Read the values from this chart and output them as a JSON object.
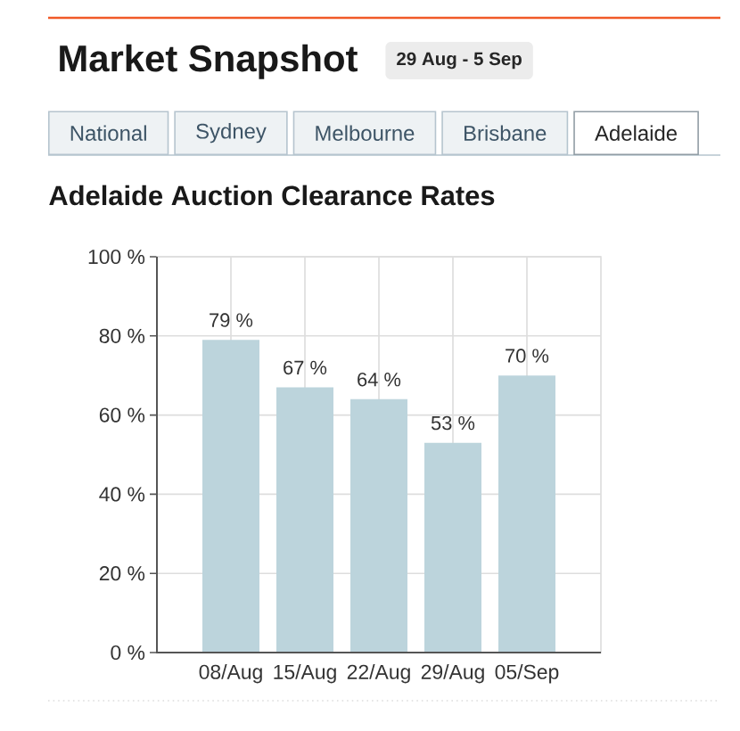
{
  "chart_data": {
    "type": "bar",
    "title": "Adelaide Auction Clearance Rates",
    "categories": [
      "08/Aug",
      "15/Aug",
      "22/Aug",
      "29/Aug",
      "05/Sep"
    ],
    "values": [
      79,
      67,
      64,
      53,
      70
    ],
    "color": "#bcd4dc",
    "value_labels": [
      "79 %",
      "67 %",
      "64 %",
      "53 %",
      "70 %"
    ],
    "ylim": [
      0,
      100
    ],
    "yticks": [
      {
        "value": 0,
        "label": "0 %"
      },
      {
        "value": 20,
        "label": "20 %"
      },
      {
        "value": 40,
        "label": "40 %"
      },
      {
        "value": 60,
        "label": "60 %"
      },
      {
        "value": 80,
        "label": "80 %"
      },
      {
        "value": 100,
        "label": "100 %"
      }
    ],
    "grid": true,
    "annotations": [
      "Market Snapshot",
      "29 Aug - 5 Sep",
      "National",
      "Sydney",
      "Melbourne",
      "Brisbane",
      "Adelaide"
    ]
  }
}
